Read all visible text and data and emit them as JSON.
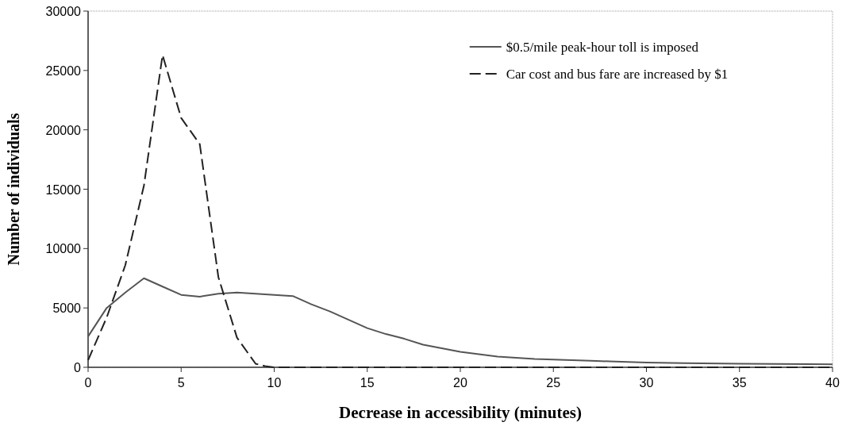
{
  "chart_data": {
    "type": "line",
    "xlabel": "Decrease in accessibility (minutes)",
    "ylabel": "Number of individuals",
    "xlim": [
      0,
      40
    ],
    "xticks": [
      0,
      5,
      10,
      15,
      20,
      25,
      30,
      35,
      40
    ],
    "ylim": [
      0,
      30000
    ],
    "yticks": [
      0,
      5000,
      10000,
      15000,
      20000,
      25000,
      30000
    ],
    "legend": "top right",
    "grid": false,
    "marker": "none",
    "series": [
      {
        "name": "$0.5/mile peak-hour toll is imposed",
        "color": "#555555",
        "line_style": "solid",
        "x": [
          0,
          1,
          2,
          3,
          4,
          5,
          6,
          7,
          8,
          9,
          10,
          11,
          12,
          13,
          14,
          15,
          16,
          17,
          18,
          19,
          20,
          21,
          22,
          23,
          24,
          25,
          26,
          27,
          28,
          30,
          32,
          35,
          40
        ],
        "values": [
          2600,
          5000,
          6300,
          7500,
          6800,
          6100,
          5950,
          6200,
          6300,
          6200,
          6100,
          6000,
          5300,
          4700,
          4000,
          3300,
          2800,
          2400,
          1900,
          1600,
          1300,
          1100,
          900,
          800,
          700,
          650,
          600,
          550,
          500,
          400,
          350,
          300,
          250
        ]
      },
      {
        "name": "Car cost and bus fare are increased by $1",
        "color": "#222222",
        "line_style": "dashed",
        "x": [
          0,
          1,
          2,
          3,
          4,
          5,
          6,
          7,
          8,
          9,
          9.5,
          10,
          40
        ],
        "values": [
          600,
          4200,
          8600,
          15300,
          26300,
          21000,
          18800,
          7600,
          2500,
          300,
          100,
          0,
          0
        ]
      }
    ]
  }
}
